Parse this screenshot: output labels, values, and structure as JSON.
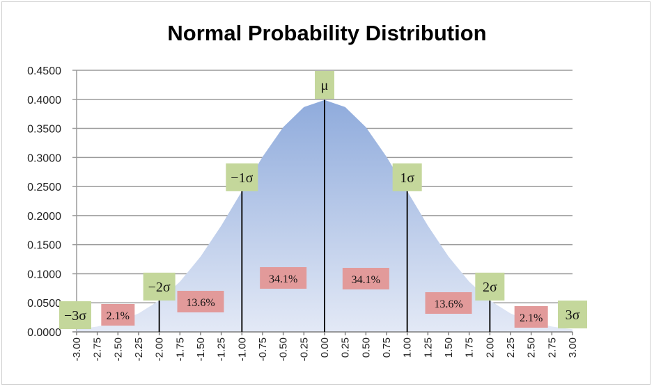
{
  "chart_data": {
    "type": "area",
    "title": "Normal Probability Distribution",
    "xlabel": "",
    "ylabel": "",
    "x": [
      -3.0,
      -2.75,
      -2.5,
      -2.25,
      -2.0,
      -1.75,
      -1.5,
      -1.25,
      -1.0,
      -0.75,
      -0.5,
      -0.25,
      0.0,
      0.25,
      0.5,
      0.75,
      1.0,
      1.25,
      1.5,
      1.75,
      2.0,
      2.25,
      2.5,
      2.75,
      3.0
    ],
    "x_tick_labels": [
      "-3.00",
      "-2.75",
      "-2.50",
      "-2.25",
      "-2.00",
      "-1.75",
      "-1.50",
      "-1.25",
      "-1.00",
      "-0.75",
      "-0.50",
      "-0.25",
      "0.00",
      "0.25",
      "0.50",
      "0.75",
      "1.00",
      "1.25",
      "1.50",
      "1.75",
      "2.00",
      "2.25",
      "2.50",
      "2.75",
      "3.00"
    ],
    "y": [
      0.0044,
      0.0091,
      0.0175,
      0.0317,
      0.054,
      0.0863,
      0.1295,
      0.1826,
      0.242,
      0.3011,
      0.3521,
      0.3867,
      0.3989,
      0.3867,
      0.3521,
      0.3011,
      0.242,
      0.1826,
      0.1295,
      0.0863,
      0.054,
      0.0317,
      0.0175,
      0.0091,
      0.0044
    ],
    "ylim": [
      0,
      0.45
    ],
    "y_tick_labels": [
      "0.0000",
      "0.0500",
      "0.1000",
      "0.1500",
      "0.2000",
      "0.2500",
      "0.3000",
      "0.3500",
      "0.4000",
      "0.4500"
    ],
    "grid": true,
    "fill_color_top": "#8fabdc",
    "fill_color_bottom": "#e3e9f6",
    "sigma_markers": [
      {
        "label": "−3σ",
        "x": -3
      },
      {
        "label": "−2σ",
        "x": -2
      },
      {
        "label": "−1σ",
        "x": -1
      },
      {
        "label": "μ",
        "x": 0
      },
      {
        "label": "1σ",
        "x": 1
      },
      {
        "label": "2σ",
        "x": 2
      },
      {
        "label": "3σ",
        "x": 3
      }
    ],
    "region_labels": [
      {
        "label": "2.1%",
        "x": -2.5
      },
      {
        "label": "13.6%",
        "x": -1.5
      },
      {
        "label": "34.1%",
        "x": -0.5
      },
      {
        "label": "34.1%",
        "x": 0.5
      },
      {
        "label": "13.6%",
        "x": 1.5
      },
      {
        "label": "2.1%",
        "x": 2.5
      }
    ],
    "marker_color": "#c4d79b",
    "region_color": "#e29a9a"
  }
}
